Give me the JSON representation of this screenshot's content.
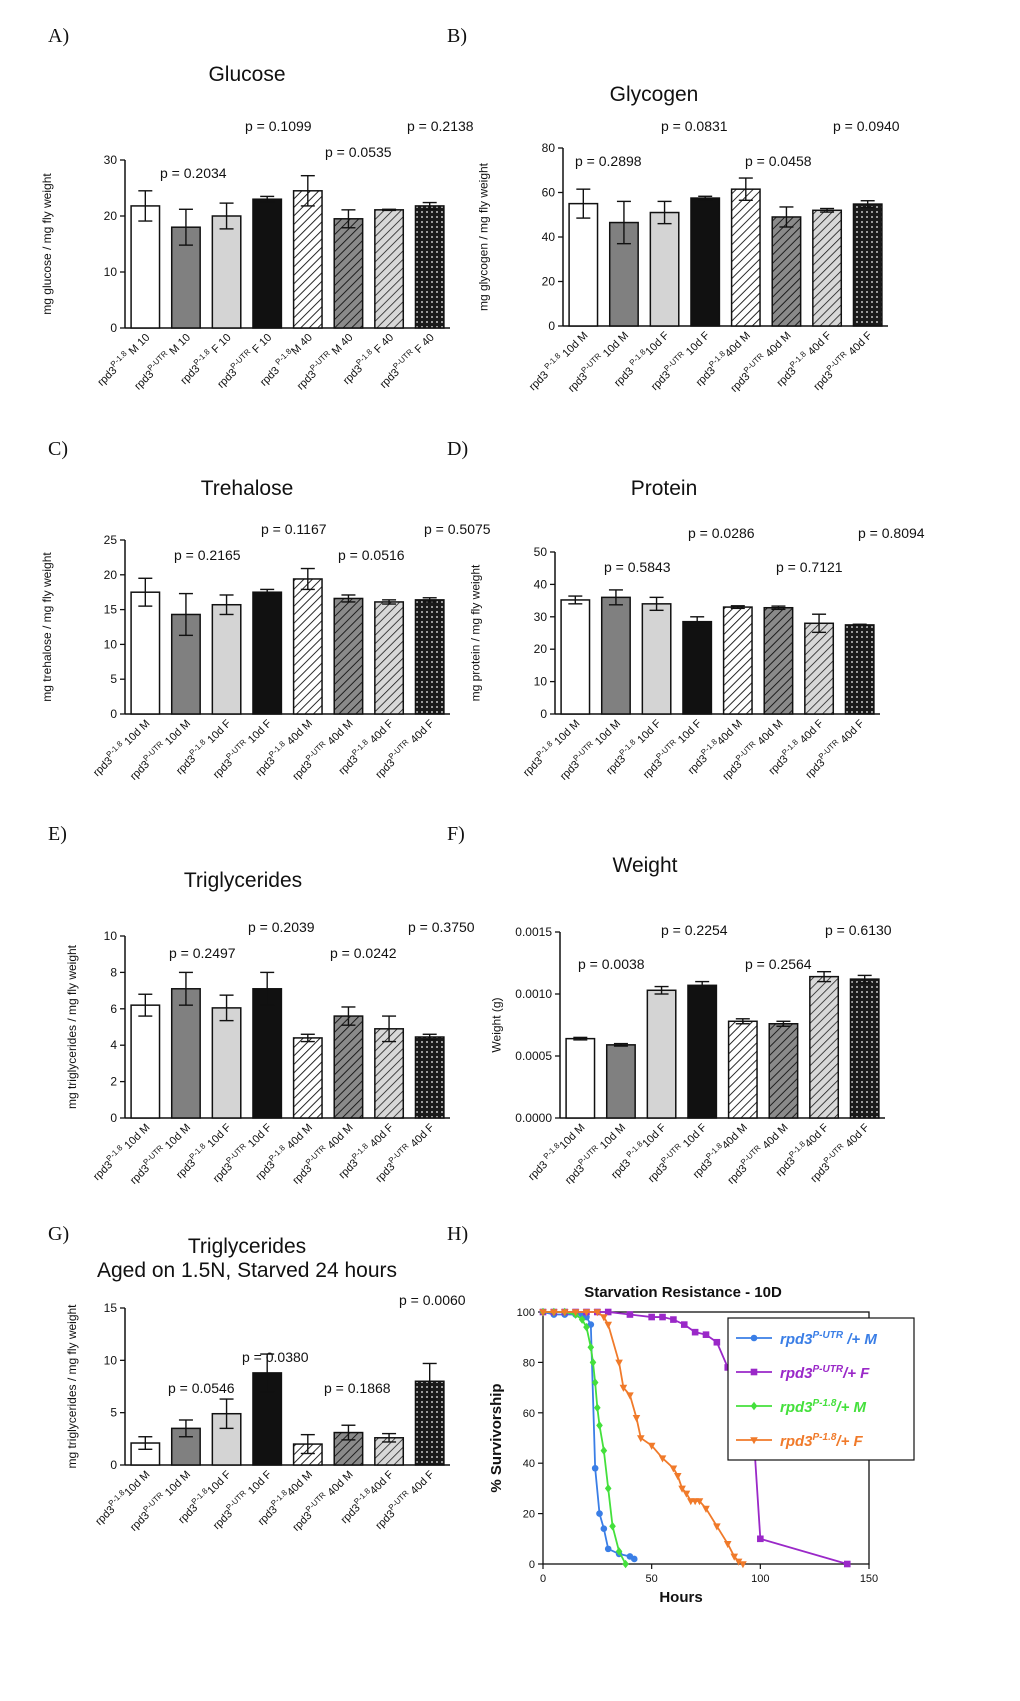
{
  "colors": {
    "black": "#111111",
    "dark_gray": "#808080",
    "light_gray": "#d4d4d4",
    "white": "#ffffff",
    "blue": "#3a7ee6",
    "purple": "#9a28c8",
    "green": "#44e03c",
    "orange": "#f07a2a"
  },
  "chart_data": [
    {
      "panel": "A)",
      "type": "bar",
      "title": [
        "Glucose"
      ],
      "ylabel": "mg glucose / mg fly weight",
      "ylim": [
        0,
        30
      ],
      "yticks": [
        "0",
        "10",
        "20",
        "30"
      ],
      "categories": [
        "rpd3 P-1.8 M 10",
        "rpd3 P-UTR M 10",
        "rpd3 P-1.8 F 10",
        "rpd3 P-UTR F 10",
        "rpd3 P-1.8 M 40",
        "rpd3 P-UTR M 40",
        "rpd3 P-1.8 F 40",
        "rpd3 P-UTR F 40"
      ],
      "tick_labels": [
        {
          "pre": "rpd3",
          "sup": "P-1.8",
          "post": " M 10"
        },
        {
          "pre": "rpd3",
          "sup": "P-UTR",
          "post": " M 10"
        },
        {
          "pre": "rpd3",
          "sup": "P-1.8",
          "post": " F 10"
        },
        {
          "pre": "rpd3",
          "sup": "P-UTR",
          "post": " F 10"
        },
        {
          "pre": "rpd3 ",
          "sup": "P-1.8",
          "post": "M 40"
        },
        {
          "pre": "rpd3",
          "sup": "P-UTR",
          "post": " M 40"
        },
        {
          "pre": "rpd3",
          "sup": "P-1.8",
          "post": " F 40"
        },
        {
          "pre": "rpd3",
          "sup": "P-UTR",
          "post": " F 40"
        }
      ],
      "values": [
        21.8,
        18.0,
        20.0,
        23.0,
        24.5,
        19.5,
        21.1,
        21.8
      ],
      "errors": [
        2.7,
        3.2,
        2.3,
        0.5,
        2.7,
        1.6,
        0.1,
        0.6
      ],
      "fills": [
        "white",
        "dark_gray",
        "light_gray",
        "black",
        "hatch_light",
        "hatch_dark",
        "hatch_gray",
        "hatch_black"
      ],
      "p_values": [
        "p = 0.2034",
        "p = 0.1099",
        "p = 0.0535",
        "p = 0.2138"
      ]
    },
    {
      "panel": "B)",
      "type": "bar",
      "title": [
        "Glycogen"
      ],
      "ylabel": "mg glycogen / mg fly weight",
      "ylim": [
        0,
        80
      ],
      "yticks": [
        "0",
        "20",
        "40",
        "60",
        "80"
      ],
      "categories": [
        "rpd3 P-1.8 10d M",
        "rpd3 P-UTR 10d M",
        "rpd3 P-1.8 10d F",
        "rpd3 P-UTR 10d F",
        "rpd3 P-1.8 40d M",
        "rpd3 P-UTR 40d M",
        "rpd3 P-1.8 40d F",
        "rpd3 P-UTR 40d F"
      ],
      "tick_labels": [
        {
          "pre": "rpd3 ",
          "sup": "P-1.8",
          "post": " 10d M"
        },
        {
          "pre": "rpd3",
          "sup": "P-UTR",
          "post": " 10d M"
        },
        {
          "pre": "rpd3 ",
          "sup": "P-1.8",
          "post": "10d F"
        },
        {
          "pre": "rpd3",
          "sup": "P-UTR",
          "post": " 10d F"
        },
        {
          "pre": "rpd3",
          "sup": "P-1.8",
          "post": "40d M"
        },
        {
          "pre": "rpd3",
          "sup": "P-UTR",
          "post": " 40d M"
        },
        {
          "pre": "rpd3",
          "sup": "P-1.8",
          "post": " 40d F"
        },
        {
          "pre": "rpd3",
          "sup": "P-UTR",
          "post": " 40d F"
        }
      ],
      "values": [
        55.0,
        46.5,
        51.0,
        57.5,
        61.5,
        49.0,
        52.0,
        54.8
      ],
      "errors": [
        6.5,
        9.5,
        5.0,
        0.8,
        5.0,
        4.5,
        0.8,
        1.5
      ],
      "fills": [
        "white",
        "dark_gray",
        "light_gray",
        "black",
        "hatch_light",
        "hatch_dark",
        "hatch_gray",
        "hatch_black"
      ],
      "p_values": [
        "p = 0.2898",
        "p = 0.0831",
        "p = 0.0458",
        "p = 0.0940"
      ]
    },
    {
      "panel": "C)",
      "type": "bar",
      "title": [
        "Trehalose"
      ],
      "ylabel": "mg trehalose / mg fly weight",
      "ylim": [
        0,
        25
      ],
      "yticks": [
        "0",
        "5",
        "10",
        "15",
        "20",
        "25"
      ],
      "categories": [
        "rpd3 P-1.8 10d M",
        "rpd3 P-UTR 10d M",
        "rpd3 P-1.8 10d F",
        "rpd3 P-UTR 10d F",
        "rpd3 P-1.8 40d M",
        "rpd3 P-UTR 40d M",
        "rpd3 P-1.8 40d F",
        "rpd3 P-UTR 40d F"
      ],
      "tick_labels": [
        {
          "pre": "rpd3",
          "sup": "P-1.8",
          "post": " 10d M"
        },
        {
          "pre": "rpd3",
          "sup": "P-UTR",
          "post": " 10d M"
        },
        {
          "pre": "rpd3",
          "sup": "P-1.8",
          "post": " 10d F"
        },
        {
          "pre": "rpd3",
          "sup": "P-UTR",
          "post": " 10d F"
        },
        {
          "pre": "rpd3",
          "sup": "P-1.8",
          "post": " 40d M"
        },
        {
          "pre": "rpd3",
          "sup": "P-UTR",
          "post": " 40d M"
        },
        {
          "pre": "rpd3",
          "sup": "P-1.8",
          "post": " 40d F"
        },
        {
          "pre": "rpd3",
          "sup": "P-UTR",
          "post": " 40d F"
        }
      ],
      "values": [
        17.5,
        14.3,
        15.7,
        17.5,
        19.4,
        16.6,
        16.1,
        16.4
      ],
      "errors": [
        2.0,
        3.0,
        1.4,
        0.4,
        1.5,
        0.5,
        0.3,
        0.3
      ],
      "fills": [
        "white",
        "dark_gray",
        "light_gray",
        "black",
        "hatch_light",
        "hatch_dark",
        "hatch_gray",
        "hatch_black"
      ],
      "p_values": [
        "p = 0.2165",
        "p = 0.1167",
        "p = 0.0516",
        "p = 0.5075"
      ]
    },
    {
      "panel": "D)",
      "type": "bar",
      "title": [
        "Protein"
      ],
      "ylabel": "mg protein / mg fly weight",
      "ylim": [
        0,
        50
      ],
      "yticks": [
        "0",
        "10",
        "20",
        "30",
        "40",
        "50"
      ],
      "categories": [
        "rpd3 P-1.8 10d M",
        "rpd3 P-UTR 10d M",
        "rpd3 P-1.8 10d F",
        "rpd3 P-UTR 10d F",
        "rpd3 P-1.8 40d M",
        "rpd3 P-UTR 40d M",
        "rpd3 P-1.8 40d F",
        "rpd3 P-UTR 40d F"
      ],
      "tick_labels": [
        {
          "pre": "rpd3",
          "sup": "P-1.8",
          "post": " 10d M"
        },
        {
          "pre": "rpd3",
          "sup": "P-UTR",
          "post": " 10d M"
        },
        {
          "pre": "rpd3",
          "sup": "P-1.8",
          "post": " 10d F"
        },
        {
          "pre": "rpd3",
          "sup": "P-UTR",
          "post": " 10d F"
        },
        {
          "pre": "rpd3",
          "sup": "P-1.8",
          "post": "40d M"
        },
        {
          "pre": "rpd3",
          "sup": "P-UTR",
          "post": " 40d M"
        },
        {
          "pre": "rpd3",
          "sup": "P-1.8",
          "post": " 40d F"
        },
        {
          "pre": "rpd3",
          "sup": "P-UTR",
          "post": " 40d F"
        }
      ],
      "values": [
        35.2,
        36.0,
        34.0,
        28.5,
        33.0,
        32.8,
        28.0,
        27.5
      ],
      "errors": [
        1.2,
        2.3,
        2.0,
        1.5,
        0.4,
        0.5,
        2.8,
        0.2
      ],
      "fills": [
        "white",
        "dark_gray",
        "light_gray",
        "black",
        "hatch_light",
        "hatch_dark",
        "hatch_gray",
        "hatch_black"
      ],
      "p_values": [
        "p = 0.5843",
        "p = 0.0286",
        "p = 0.7121",
        "p = 0.8094"
      ]
    },
    {
      "panel": "E)",
      "type": "bar",
      "title": [
        "Triglycerides"
      ],
      "ylabel": "mg triglycerides / mg fly weight",
      "ylim": [
        0,
        10
      ],
      "yticks": [
        "0",
        "2",
        "4",
        "6",
        "8",
        "10"
      ],
      "categories": [
        "rpd3 P-1.8 10d M",
        "rpd3 P-UTR 10d M",
        "rpd3 P-1.8 10d F",
        "rpd3 P-UTR 10d F",
        "rpd3 P-1.8 40d M",
        "rpd3 P-UTR 40d M",
        "rpd3 P-1.8 40d F",
        "rpd3 P-UTR 40d F"
      ],
      "tick_labels": [
        {
          "pre": "rpd3",
          "sup": "P-1.8",
          "post": " 10d M"
        },
        {
          "pre": "rpd3",
          "sup": "P-UTR",
          "post": " 10d M"
        },
        {
          "pre": "rpd3",
          "sup": "P-1.8",
          "post": " 10d F"
        },
        {
          "pre": "rpd3",
          "sup": "P-UTR",
          "post": " 10d F"
        },
        {
          "pre": "rpd3",
          "sup": "P-1.8",
          "post": " 40d M"
        },
        {
          "pre": "rpd3",
          "sup": "P-UTR",
          "post": " 40d M"
        },
        {
          "pre": "rpd3",
          "sup": "P-1.8",
          "post": " 40d F"
        },
        {
          "pre": "rpd3",
          "sup": "P-UTR",
          "post": " 40d F"
        }
      ],
      "values": [
        6.2,
        7.1,
        6.05,
        7.1,
        4.4,
        5.6,
        4.9,
        4.45
      ],
      "errors": [
        0.6,
        0.9,
        0.7,
        0.9,
        0.2,
        0.5,
        0.7,
        0.15
      ],
      "fills": [
        "white",
        "dark_gray",
        "light_gray",
        "black",
        "hatch_light",
        "hatch_dark",
        "hatch_gray",
        "hatch_black"
      ],
      "p_values": [
        "p = 0.2497",
        "p = 0.2039",
        "p = 0.0242",
        "p = 0.3750"
      ]
    },
    {
      "panel": "F)",
      "type": "bar",
      "title": [
        "Weight"
      ],
      "ylabel": "Weight (g)",
      "ylim": [
        0,
        0.0015
      ],
      "yticks": [
        "0.0000",
        "0.0005",
        "0.0010",
        "0.0015"
      ],
      "categories": [
        "rpd3 P-1.8 10d M",
        "rpd3 P-UTR 10d M",
        "rpd3 P-1.8 10d F",
        "rpd3 P-UTR 10d F",
        "rpd3 P-1.8 40d M",
        "rpd3 P-UTR 40d M",
        "rpd3 P-1.8 40d F",
        "rpd3 P-UTR 40d F"
      ],
      "tick_labels": [
        {
          "pre": "rpd3 ",
          "sup": "P-1.8",
          "post": "10d M"
        },
        {
          "pre": "rpd3",
          "sup": "P-UTR",
          "post": " 10d M"
        },
        {
          "pre": "rpd3 ",
          "sup": "P-1.8",
          "post": "10d F"
        },
        {
          "pre": "rpd3",
          "sup": "P-UTR",
          "post": " 10d F"
        },
        {
          "pre": "rpd3",
          "sup": "P-1.8",
          "post": "40d M"
        },
        {
          "pre": "rpd3",
          "sup": "P-UTR",
          "post": " 40d M"
        },
        {
          "pre": "rpd3",
          "sup": "P-1.8",
          "post": "40d F"
        },
        {
          "pre": "rpd3",
          "sup": "P-UTR",
          "post": " 40d F"
        }
      ],
      "values": [
        0.00064,
        0.00059,
        0.00103,
        0.00107,
        0.00078,
        0.00076,
        0.00114,
        0.00112
      ],
      "errors": [
        1e-05,
        1e-05,
        3e-05,
        3e-05,
        2e-05,
        2e-05,
        4e-05,
        3e-05
      ],
      "fills": [
        "white",
        "dark_gray",
        "light_gray",
        "black",
        "hatch_light",
        "hatch_dark",
        "hatch_gray",
        "hatch_black"
      ],
      "p_values": [
        "p = 0.0038",
        "p = 0.2254",
        "p = 0.2564",
        "p = 0.6130"
      ]
    },
    {
      "panel": "G)",
      "type": "bar",
      "title": [
        "Triglycerides",
        "Aged on 1.5N, Starved 24 hours"
      ],
      "ylabel": "mg triglycerides / mg fly weight",
      "ylim": [
        0,
        15
      ],
      "yticks": [
        "0",
        "5",
        "10",
        "15"
      ],
      "categories": [
        "rpd3 P-1.8 10d M",
        "rpd3 P-UTR 10d M",
        "rpd3 P-1.8 10d F",
        "rpd3 P-UTR 10d F",
        "rpd3 P-1.8 40d M",
        "rpd3 P-UTR 40d M",
        "rpd3 P-1.8 40d F",
        "rpd3 P-UTR 40d F"
      ],
      "tick_labels": [
        {
          "pre": "rpd3",
          "sup": "P-1.8",
          "post": "10d M"
        },
        {
          "pre": "rpd3",
          "sup": "P-UTR",
          "post": " 10d M"
        },
        {
          "pre": "rpd3",
          "sup": "P-1.8",
          "post": "10d F"
        },
        {
          "pre": "rpd3",
          "sup": "P-UTR",
          "post": " 10d F"
        },
        {
          "pre": "rpd3",
          "sup": "P-1.8",
          "post": "40d M"
        },
        {
          "pre": "rpd3",
          "sup": "P-UTR",
          "post": " 40d M"
        },
        {
          "pre": "rpd3",
          "sup": "P-1.8",
          "post": "40d F"
        },
        {
          "pre": "rpd3",
          "sup": "P-UTR",
          "post": " 40d F"
        }
      ],
      "values": [
        2.1,
        3.5,
        4.9,
        8.8,
        2.0,
        3.1,
        2.6,
        8.0
      ],
      "errors": [
        0.6,
        0.8,
        1.4,
        1.8,
        0.9,
        0.7,
        0.4,
        1.7
      ],
      "fills": [
        "white",
        "dark_gray",
        "light_gray",
        "black",
        "hatch_light",
        "hatch_dark",
        "hatch_gray",
        "hatch_black"
      ],
      "p_values": [
        "p = 0.0546",
        "p = 0.0380",
        "p = 0.1868",
        "p = 0.0060"
      ]
    },
    {
      "panel": "H)",
      "type": "line",
      "title": "Starvation Resistance - 10D",
      "xlabel": "Hours",
      "ylabel": "% Survivorship",
      "xlim": [
        0,
        150
      ],
      "ylim": [
        0,
        100
      ],
      "xticks": [
        "0",
        "50",
        "100",
        "150"
      ],
      "yticks": [
        "0",
        "20",
        "40",
        "60",
        "80",
        "100"
      ],
      "series": [
        {
          "name": "rpd3 P-UTR /+ M",
          "label_pre": "rpd3",
          "label_sup": "P-UTR",
          "label_post": " /+ M",
          "color": "blue",
          "marker": "circle",
          "x": [
            0,
            5,
            10,
            15,
            18,
            20,
            22,
            24,
            26,
            28,
            30,
            35,
            40,
            42
          ],
          "y": [
            100,
            99,
            99,
            99,
            99,
            98,
            95,
            38,
            20,
            14,
            6,
            4,
            3,
            2
          ]
        },
        {
          "name": "rpd3 P-UTR /+ F",
          "label_pre": "rpd3",
          "label_sup": "P-UTR",
          "label_post": "/+ F",
          "color": "purple",
          "marker": "square",
          "x": [
            0,
            5,
            10,
            15,
            20,
            25,
            30,
            40,
            50,
            55,
            60,
            65,
            70,
            75,
            80,
            85,
            90,
            92,
            95,
            97,
            100,
            140
          ],
          "y": [
            100,
            100,
            100,
            100,
            100,
            100,
            100,
            99,
            98,
            98,
            97,
            95,
            92,
            91,
            88,
            78,
            68,
            55,
            52,
            50,
            10,
            0
          ]
        },
        {
          "name": "rpd3 P-1.8 /+ M",
          "label_pre": "rpd3",
          "label_sup": "P-1.8",
          "label_post": "/+ M",
          "color": "green",
          "marker": "diamond",
          "x": [
            0,
            5,
            10,
            15,
            18,
            20,
            22,
            23,
            24,
            25,
            26,
            28,
            30,
            32,
            35,
            38
          ],
          "y": [
            100,
            100,
            100,
            99,
            97,
            94,
            86,
            80,
            72,
            62,
            55,
            45,
            30,
            15,
            5,
            0
          ]
        },
        {
          "name": "rpd3 P-1.8 /+ F",
          "label_pre": "rpd3",
          "label_sup": "P-1.8",
          "label_post": "/+ F",
          "color": "orange",
          "marker": "triangle",
          "x": [
            0,
            5,
            10,
            15,
            20,
            25,
            28,
            30,
            35,
            37,
            40,
            43,
            45,
            50,
            55,
            60,
            62,
            64,
            66,
            68,
            70,
            72,
            75,
            80,
            85,
            88,
            90,
            92
          ],
          "y": [
            100,
            100,
            100,
            100,
            100,
            100,
            98,
            95,
            80,
            70,
            67,
            58,
            50,
            47,
            42,
            38,
            35,
            30,
            28,
            25,
            25,
            25,
            22,
            15,
            8,
            3,
            1,
            0
          ]
        }
      ]
    }
  ]
}
